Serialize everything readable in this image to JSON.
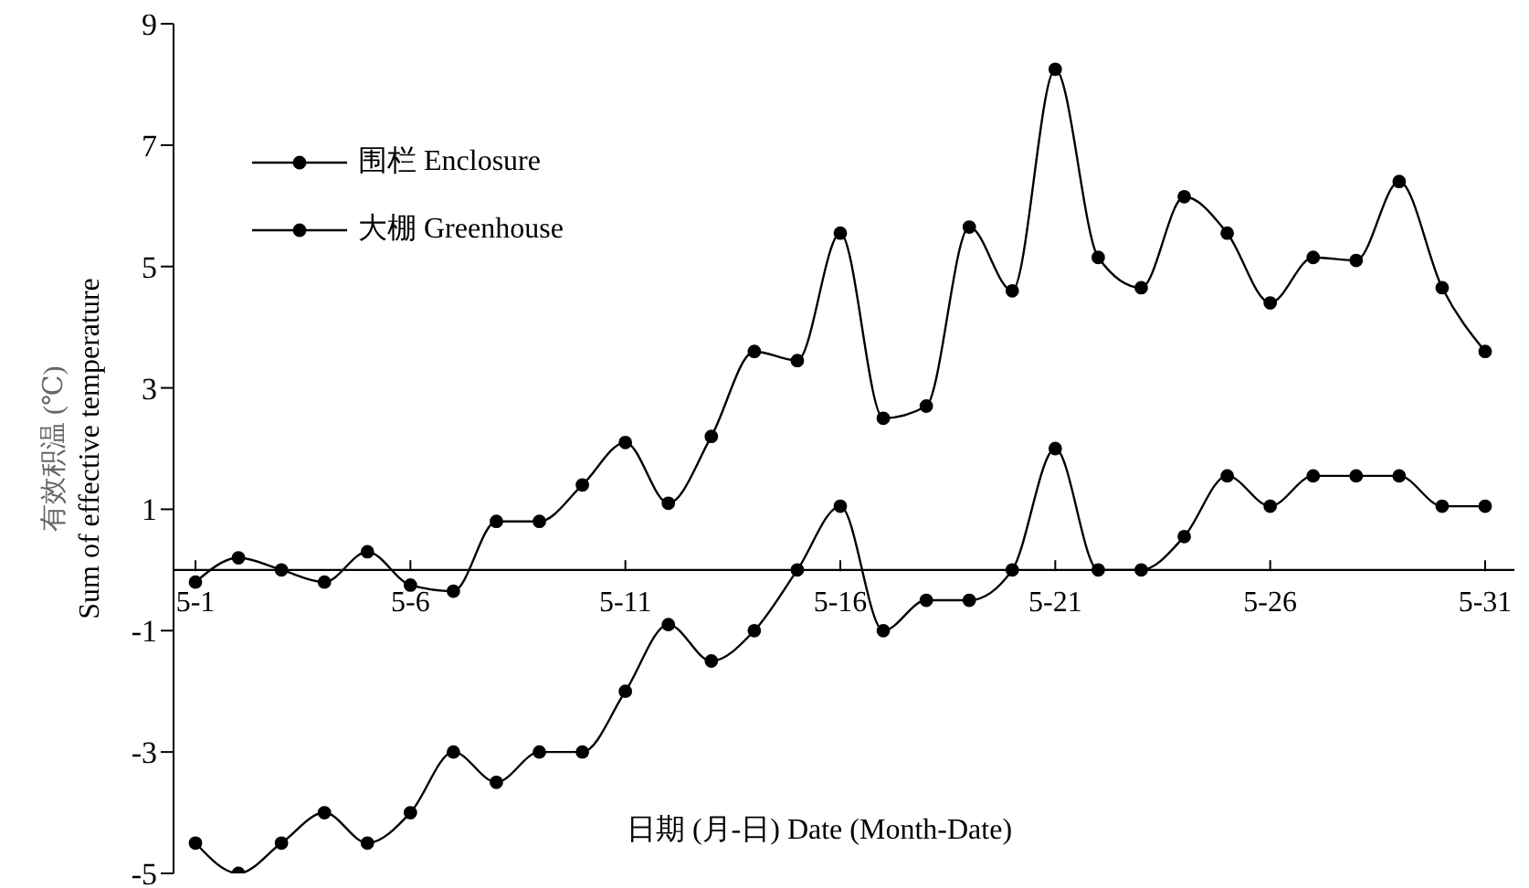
{
  "chart_data": {
    "type": "line",
    "xlabel": "日期 (月-日) Date (Month-Date)",
    "ylabel": "有效积温 (℃)\nSum of effective temperature",
    "categories": [
      "5-1",
      null,
      null,
      null,
      null,
      "5-6",
      null,
      null,
      null,
      null,
      "5-11",
      null,
      null,
      null,
      null,
      "5-16",
      null,
      null,
      null,
      null,
      "5-21",
      null,
      null,
      null,
      null,
      "5-26",
      null,
      null,
      null,
      null,
      "5-31"
    ],
    "series": [
      {
        "name": "围栏 Enclosure",
        "color": "#000000",
        "values": [
          -4.5,
          -5,
          -4.5,
          -4,
          -4.5,
          -4,
          -3,
          -3.5,
          -3,
          -3,
          -2,
          -0.9,
          -1.5,
          -1,
          0,
          1.05,
          -1,
          -0.5,
          -0.5,
          0,
          2,
          0,
          0,
          0.55,
          1.55,
          1.05,
          1.55,
          1.55,
          1.55,
          1.05,
          1.05
        ]
      },
      {
        "name": "大棚 Greenhouse",
        "color": "#000000",
        "values": [
          -0.2,
          0.2,
          0,
          -0.2,
          0.3,
          -0.25,
          -0.35,
          0.8,
          0.8,
          1.4,
          2.1,
          1.1,
          2.2,
          3.6,
          3.45,
          5.55,
          2.5,
          2.7,
          5.65,
          4.6,
          8.25,
          5.15,
          4.65,
          6.15,
          5.55,
          4.4,
          5.15,
          5.1,
          6.4,
          4.65,
          3.6
        ]
      }
    ],
    "ylim": [
      -5,
      9
    ],
    "yticks": [
      -5,
      -3,
      -1,
      1,
      3,
      5,
      7,
      9
    ],
    "grid": false,
    "legend": "top left",
    "marker": "circle",
    "line_style": "solid"
  }
}
